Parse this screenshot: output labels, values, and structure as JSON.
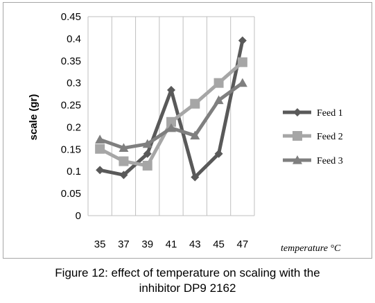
{
  "chart_data": {
    "type": "line",
    "title": "",
    "xlabel": "temperature °C",
    "ylabel": "scale (gr)",
    "categories": [
      "35",
      "37",
      "39",
      "41",
      "43",
      "45",
      "47"
    ],
    "ylim": [
      0,
      0.45
    ],
    "yticks": [
      "0",
      "0.05",
      "0.1",
      "0.15",
      "0.2",
      "0.25",
      "0.3",
      "0.35",
      "0.4",
      "0.45"
    ],
    "grid": "vertical",
    "legend": "right",
    "series": [
      {
        "name": "Feed 1",
        "marker": "diamond",
        "color": "#595959",
        "values": [
          0.103,
          0.092,
          0.14,
          0.284,
          0.087,
          0.14,
          0.396
        ]
      },
      {
        "name": "Feed 2",
        "marker": "square",
        "color": "#a6a6a6",
        "values": [
          0.151,
          0.123,
          0.113,
          0.212,
          0.253,
          0.3,
          0.347
        ]
      },
      {
        "name": "Feed 3",
        "marker": "triangle",
        "color": "#7f7f7f",
        "values": [
          0.172,
          0.153,
          0.162,
          0.198,
          0.181,
          0.261,
          0.3
        ]
      }
    ]
  },
  "caption": {
    "line1": "Figure 12: effect of temperature on scaling with the",
    "line2": "inhibitor DP9 2162"
  }
}
